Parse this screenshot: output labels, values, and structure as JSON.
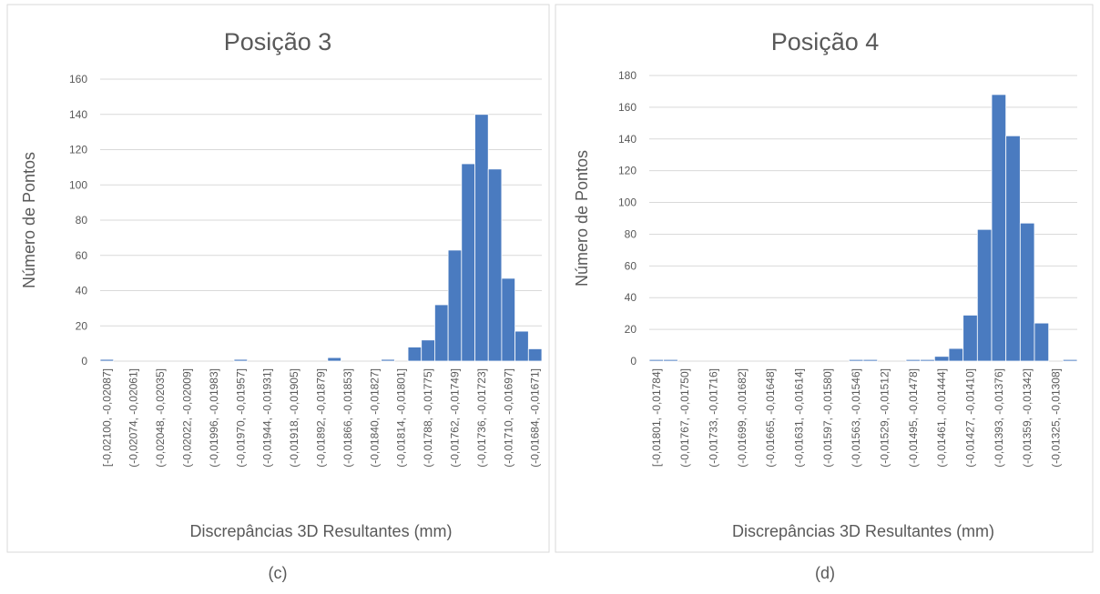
{
  "chart_data": [
    {
      "type": "bar",
      "title": "Posição 3",
      "x_label": "Discrepâncias 3D Resultantes (mm)",
      "y_label": "Número de Pontos",
      "categories": [
        "[-0,02100, -0,02087]",
        null,
        "(-0,02074, -0,02061]",
        null,
        "(-0,02048, -0,02035]",
        null,
        "(-0,02022, -0,02009]",
        null,
        "(-0,01996, -0,01983]",
        null,
        "(-0,01970, -0,01957]",
        null,
        "(-0,01944, -0,01931]",
        null,
        "(-0,01918, -0,01905]",
        null,
        "(-0,01892, -0,01879]",
        null,
        "(-0,01866, -0,01853]",
        null,
        "(-0,01840, -0,01827]",
        null,
        "(-0,01814, -0,01801]",
        null,
        "(-0,01788, -0,01775]",
        null,
        "(-0,01762, -0,01749]",
        null,
        "(-0,01736, -0,01723]",
        null,
        "(-0,01710, -0,01697]",
        null,
        "(-0,01684, -0,01671]"
      ],
      "values": [
        1,
        0,
        0,
        0,
        0,
        0,
        0,
        0,
        0,
        0,
        1,
        0,
        0,
        0,
        0,
        0,
        0,
        2,
        0,
        0,
        0,
        1,
        0,
        8,
        12,
        32,
        63,
        112,
        140,
        109,
        47,
        17,
        7
      ],
      "color": "#4a7bc0",
      "ylim": [
        0,
        160
      ],
      "yticks": [
        0,
        20,
        40,
        60,
        80,
        100,
        120,
        140,
        160
      ],
      "grid": true,
      "caption": "(c)"
    },
    {
      "type": "bar",
      "title": "Posição 4",
      "x_label": "Discrepâncias 3D Resultantes (mm)",
      "y_label": "Número de Pontos",
      "categories": [
        "[-0,01801, -0,01784]",
        null,
        "(-0,01767, -0,01750]",
        null,
        "(-0,01733, -0,01716]",
        null,
        "(-0,01699, -0,01682]",
        null,
        "(-0,01665, -0,01648]",
        null,
        "(-0,01631, -0,01614]",
        null,
        "(-0,01597, -0,01580]",
        null,
        "(-0,01563, -0,01546]",
        null,
        "(-0,01529, -0,01512]",
        null,
        "(-0,01495, -0,01478]",
        null,
        "(-0,01461, -0,01444]",
        null,
        "(-0,01427, -0,01410]",
        null,
        "(-0,01393, -0,01376]",
        null,
        "(-0,01359, -0,01342]",
        null,
        "(-0,01325, -0,01308]",
        null
      ],
      "values": [
        1,
        1,
        0,
        0,
        0,
        0,
        0,
        0,
        0,
        0,
        0,
        0,
        0,
        0,
        1,
        1,
        0,
        0,
        1,
        1,
        3,
        8,
        29,
        83,
        168,
        142,
        87,
        24,
        0,
        1
      ],
      "color": "#4a7bc0",
      "ylim": [
        0,
        180
      ],
      "yticks": [
        0,
        20,
        40,
        60,
        80,
        100,
        120,
        140,
        160,
        180
      ],
      "grid": true,
      "caption": "(d)"
    }
  ]
}
